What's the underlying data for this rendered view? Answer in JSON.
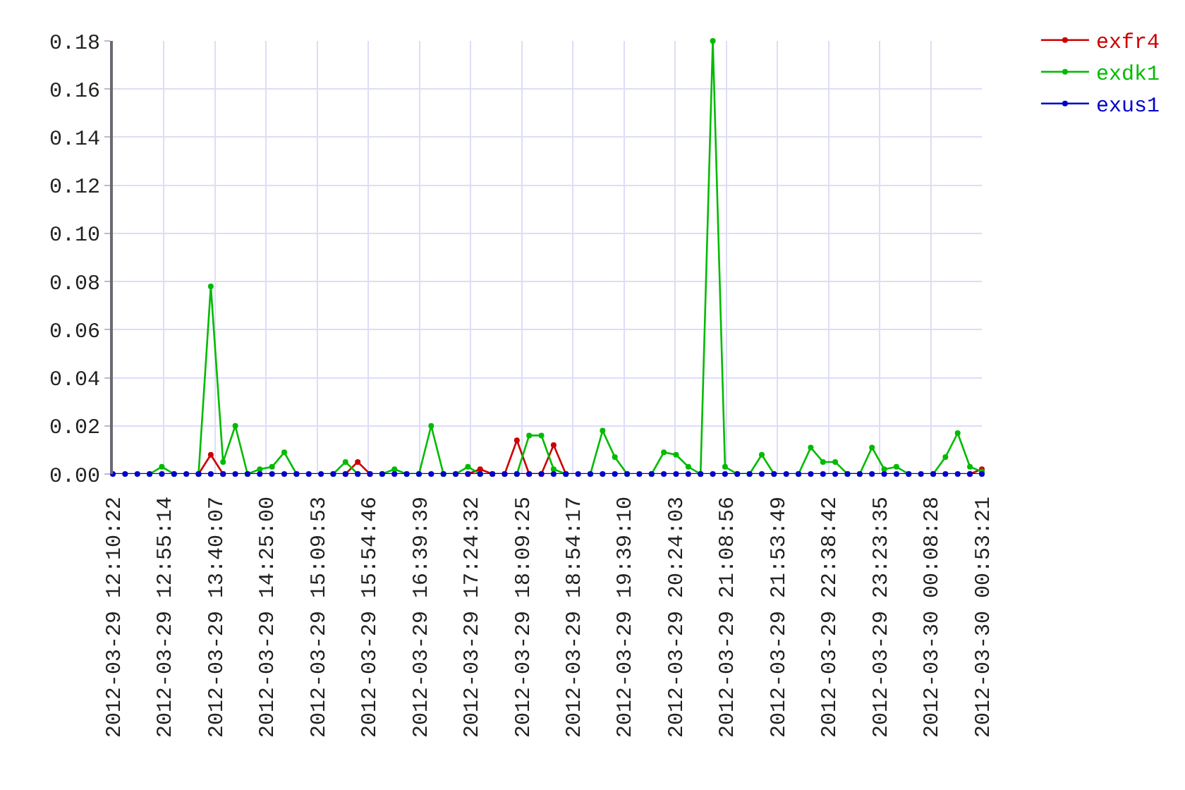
{
  "chart_data": {
    "type": "line",
    "x": [
      "2012-03-29T12:10:22",
      "2012-03-29T12:21:07",
      "2012-03-29T12:31:52",
      "2012-03-29T12:42:37",
      "2012-03-29T12:53:22",
      "2012-03-29T13:04:07",
      "2012-03-29T13:14:52",
      "2012-03-29T13:25:37",
      "2012-03-29T13:36:22",
      "2012-03-29T13:47:07",
      "2012-03-29T13:57:52",
      "2012-03-29T14:08:37",
      "2012-03-29T14:19:22",
      "2012-03-29T14:30:07",
      "2012-03-29T14:40:52",
      "2012-03-29T14:51:37",
      "2012-03-29T15:02:22",
      "2012-03-29T15:13:07",
      "2012-03-29T15:23:52",
      "2012-03-29T15:34:37",
      "2012-03-29T15:45:22",
      "2012-03-29T15:56:07",
      "2012-03-29T16:06:52",
      "2012-03-29T16:17:37",
      "2012-03-29T16:28:22",
      "2012-03-29T16:39:07",
      "2012-03-29T16:49:52",
      "2012-03-29T17:00:37",
      "2012-03-29T17:11:22",
      "2012-03-29T17:22:07",
      "2012-03-29T17:32:52",
      "2012-03-29T17:43:37",
      "2012-03-29T17:54:22",
      "2012-03-29T18:05:07",
      "2012-03-29T18:15:52",
      "2012-03-29T18:26:37",
      "2012-03-29T18:37:22",
      "2012-03-29T18:48:07",
      "2012-03-29T18:58:52",
      "2012-03-29T19:09:37",
      "2012-03-29T19:20:22",
      "2012-03-29T19:31:07",
      "2012-03-29T19:41:52",
      "2012-03-29T19:52:37",
      "2012-03-29T20:03:22",
      "2012-03-29T20:14:07",
      "2012-03-29T20:24:52",
      "2012-03-29T20:35:37",
      "2012-03-29T20:46:22",
      "2012-03-29T20:57:07",
      "2012-03-29T21:07:52",
      "2012-03-29T21:18:37",
      "2012-03-29T21:29:22",
      "2012-03-29T21:40:07",
      "2012-03-29T21:50:52",
      "2012-03-29T22:01:37",
      "2012-03-29T22:12:22",
      "2012-03-29T22:23:07",
      "2012-03-29T22:33:52",
      "2012-03-29T22:44:37",
      "2012-03-29T22:55:22",
      "2012-03-29T23:06:07",
      "2012-03-29T23:16:52",
      "2012-03-29T23:27:37",
      "2012-03-29T23:38:22",
      "2012-03-29T23:49:07",
      "2012-03-29T23:59:52",
      "2012-03-30T00:10:37",
      "2012-03-30T00:21:22",
      "2012-03-30T00:32:07",
      "2012-03-30T00:42:52",
      "2012-03-30T00:53:21"
    ],
    "xlim": [
      "2012-03-29T12:10:22",
      "2012-03-30T00:53:21"
    ],
    "xticks": [
      {
        "value": "2012-03-29T12:10:22",
        "label": "2012-03-29 12:10:22"
      },
      {
        "value": "2012-03-29T12:55:14",
        "label": "2012-03-29 12:55:14"
      },
      {
        "value": "2012-03-29T13:40:07",
        "label": "2012-03-29 13:40:07"
      },
      {
        "value": "2012-03-29T14:25:00",
        "label": "2012-03-29 14:25:00"
      },
      {
        "value": "2012-03-29T15:09:53",
        "label": "2012-03-29 15:09:53"
      },
      {
        "value": "2012-03-29T15:54:46",
        "label": "2012-03-29 15:54:46"
      },
      {
        "value": "2012-03-29T16:39:39",
        "label": "2012-03-29 16:39:39"
      },
      {
        "value": "2012-03-29T17:24:32",
        "label": "2012-03-29 17:24:32"
      },
      {
        "value": "2012-03-29T18:09:25",
        "label": "2012-03-29 18:09:25"
      },
      {
        "value": "2012-03-29T18:54:17",
        "label": "2012-03-29 18:54:17"
      },
      {
        "value": "2012-03-29T19:39:10",
        "label": "2012-03-29 19:39:10"
      },
      {
        "value": "2012-03-29T20:24:03",
        "label": "2012-03-29 20:24:03"
      },
      {
        "value": "2012-03-29T21:08:56",
        "label": "2012-03-29 21:08:56"
      },
      {
        "value": "2012-03-29T21:53:49",
        "label": "2012-03-29 21:53:49"
      },
      {
        "value": "2012-03-29T22:38:42",
        "label": "2012-03-29 22:38:42"
      },
      {
        "value": "2012-03-29T23:23:35",
        "label": "2012-03-29 23:23:35"
      },
      {
        "value": "2012-03-30T00:08:28",
        "label": "2012-03-30 00:08:28"
      },
      {
        "value": "2012-03-30T00:53:21",
        "label": "2012-03-30 00:53:21"
      }
    ],
    "ylim": [
      0,
      0.18
    ],
    "yticks": [
      {
        "value": 0,
        "label": "0.00"
      },
      0.02,
      0.04,
      0.06,
      0.08,
      {
        "value": 0.1,
        "label": "0.10"
      },
      0.12,
      0.14,
      0.16,
      0.18
    ],
    "series": [
      {
        "name": "exfr4",
        "color": "#cc0000",
        "values": [
          null,
          null,
          null,
          null,
          null,
          null,
          null,
          0,
          0.008,
          0,
          null,
          null,
          null,
          null,
          null,
          null,
          null,
          null,
          null,
          0,
          0.005,
          0,
          null,
          null,
          null,
          null,
          null,
          null,
          null,
          0,
          0.002,
          0,
          0,
          0.014,
          0,
          0,
          0.012,
          0,
          null,
          null,
          null,
          null,
          null,
          null,
          null,
          null,
          null,
          null,
          null,
          null,
          null,
          null,
          null,
          null,
          null,
          null,
          null,
          null,
          null,
          null,
          null,
          null,
          null,
          null,
          null,
          null,
          null,
          null,
          null,
          null,
          0,
          0.002
        ]
      },
      {
        "name": "exdk1",
        "color": "#00bb00",
        "values": [
          null,
          null,
          null,
          0,
          0.003,
          0,
          null,
          0,
          0.078,
          0.005,
          0.02,
          0,
          0.002,
          0.003,
          0.009,
          0,
          null,
          null,
          0,
          0.005,
          0,
          null,
          0,
          0.002,
          0,
          0,
          0.02,
          0,
          0,
          0.003,
          0,
          null,
          null,
          0,
          0.016,
          0.016,
          0.002,
          0,
          null,
          0,
          0.018,
          0.007,
          0,
          null,
          0,
          0.009,
          0.008,
          0.003,
          0,
          0.18,
          0.003,
          0,
          0,
          0.008,
          0,
          null,
          0,
          0.011,
          0.005,
          0.005,
          0,
          0,
          0.011,
          0.002,
          0.003,
          0,
          null,
          0,
          0.007,
          0.017,
          0.003,
          0.001
        ]
      },
      {
        "name": "exus1",
        "color": "#0000cc",
        "values": [
          0,
          0,
          0,
          0,
          0,
          0,
          0,
          0,
          0,
          0,
          0,
          0,
          0,
          0,
          0,
          0,
          0,
          0,
          0,
          0,
          0,
          0,
          0,
          0,
          0,
          0,
          0,
          0,
          0,
          0,
          0,
          0,
          0,
          0,
          0,
          0,
          0,
          0,
          0,
          0,
          0,
          0,
          0,
          0,
          0,
          0,
          0,
          0,
          0,
          0,
          0,
          0,
          0,
          0,
          0,
          0,
          0,
          0,
          0,
          0,
          0,
          0,
          0,
          0,
          0,
          0,
          0,
          0,
          0,
          0,
          0,
          0
        ]
      }
    ],
    "grid": true,
    "legend": "top right",
    "marker": "circle",
    "line_style": "solid"
  }
}
